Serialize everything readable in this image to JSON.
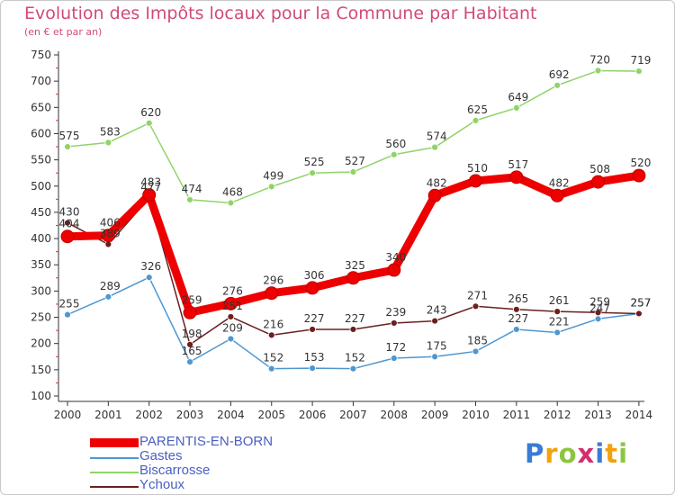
{
  "chart_data": {
    "type": "line",
    "title": "Evolution des Impôts locaux pour la Commune par Habitant",
    "subtitle": "(en € et par an)",
    "xlabel": "",
    "ylabel": "",
    "ylim": [
      100,
      750
    ],
    "yticks": [
      100,
      150,
      200,
      250,
      300,
      350,
      400,
      450,
      500,
      550,
      600,
      650,
      700,
      750
    ],
    "categories": [
      "2000",
      "2001",
      "2002",
      "2003",
      "2004",
      "2005",
      "2006",
      "2007",
      "2008",
      "2009",
      "2010",
      "2011",
      "2012",
      "2013",
      "2014"
    ],
    "grid": false,
    "legend_position": "bottom-left",
    "series": [
      {
        "name": "Biscarrosse",
        "color": "#8fd36a",
        "values": [
          575,
          583,
          620,
          474,
          468,
          499,
          525,
          527,
          560,
          574,
          625,
          649,
          692,
          720,
          719
        ],
        "labels": [
          "575",
          "583",
          "620",
          "474",
          "468",
          "499",
          "525",
          "527",
          "560",
          "574",
          "625",
          "649",
          "692",
          "720",
          "719"
        ]
      },
      {
        "name": "Gastes",
        "color": "#4f97d0",
        "values": [
          255,
          289,
          326,
          165,
          209,
          152,
          153,
          152,
          172,
          175,
          185,
          227,
          221,
          247,
          257
        ],
        "labels": [
          "255",
          "289",
          "326",
          "165",
          "209",
          "152",
          "153",
          "152",
          "172",
          "175",
          "185",
          "227",
          "221",
          "247",
          "257"
        ]
      },
      {
        "name": "Ychoux",
        "color": "#6b1f1f",
        "values": [
          430,
          389,
          477,
          198,
          251,
          216,
          227,
          227,
          239,
          243,
          271,
          265,
          261,
          259,
          257
        ],
        "labels": [
          "430",
          "389",
          "477",
          "198",
          "251",
          "216",
          "227",
          "227",
          "239",
          "243",
          "271",
          "265",
          "261",
          "259",
          "257"
        ]
      },
      {
        "name": "PARENTIS-EN-BORN",
        "color": "#ee0000",
        "values": [
          404,
          406,
          483,
          259,
          276,
          296,
          306,
          325,
          340,
          482,
          510,
          517,
          482,
          508,
          520
        ],
        "labels": [
          "404",
          "406",
          "483",
          "259",
          "276",
          "296",
          "306",
          "325",
          "340",
          "482",
          "510",
          "517",
          "482",
          "508",
          "520"
        ]
      }
    ],
    "legend_order": [
      "PARENTIS-EN-BORN",
      "Gastes",
      "Biscarrosse",
      "Ychoux"
    ]
  },
  "brand": {
    "letters": [
      "P",
      "r",
      "o",
      "x",
      "i",
      "t",
      "i"
    ],
    "colors": [
      "#3a7bd5",
      "#f2a20c",
      "#8cc63f",
      "#d0306d",
      "#3a7bd5",
      "#f2a20c",
      "#8cc63f"
    ]
  }
}
